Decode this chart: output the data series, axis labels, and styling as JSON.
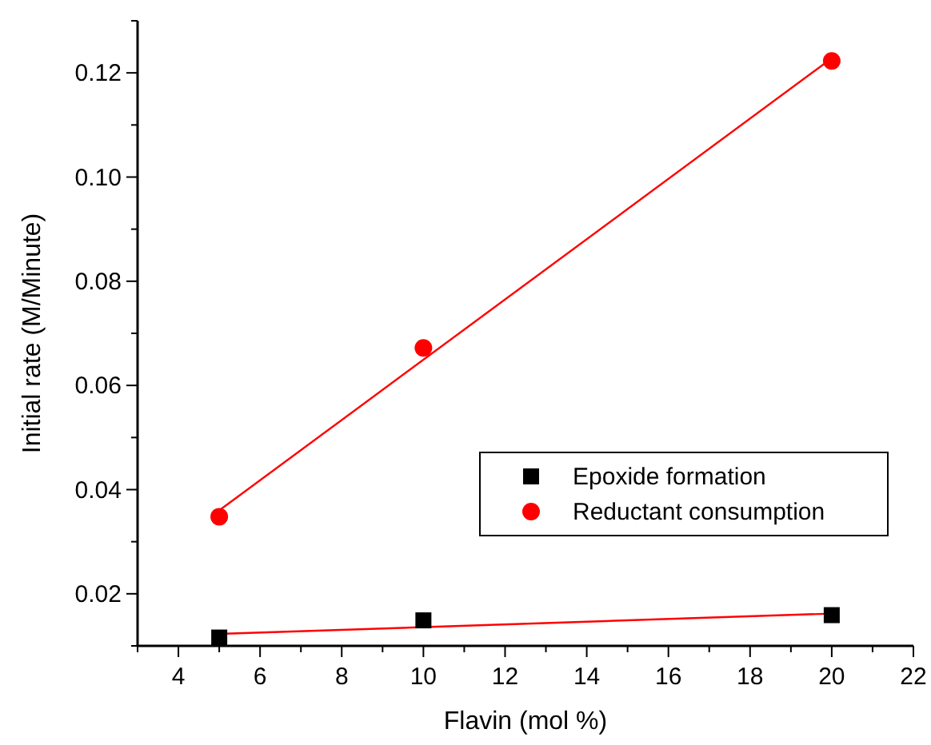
{
  "chart_data": {
    "type": "scatter",
    "xlabel": "Flavin (mol %)",
    "ylabel": "Initial rate (M/Minute)",
    "xlim": [
      3,
      22
    ],
    "xticks": [
      {
        "value": 3,
        "label": null
      },
      4,
      {
        "value": 5,
        "label": null
      },
      6,
      {
        "value": 7,
        "label": null
      },
      8,
      {
        "value": 9,
        "label": null
      },
      10,
      {
        "value": 11,
        "label": null
      },
      12,
      {
        "value": 13,
        "label": null
      },
      14,
      {
        "value": 15,
        "label": null
      },
      16,
      {
        "value": 17,
        "label": null
      },
      18,
      {
        "value": 19,
        "label": null
      },
      20,
      {
        "value": 21,
        "label": null
      },
      22
    ],
    "ylim": [
      0.01,
      0.13
    ],
    "yticks": [
      {
        "value": 0.01,
        "label": null
      },
      0.02,
      {
        "value": 0.03,
        "label": null
      },
      0.04,
      {
        "value": 0.05,
        "label": null
      },
      0.06,
      {
        "value": 0.07,
        "label": null
      },
      0.08,
      {
        "value": 0.09,
        "label": null
      },
      {
        "value": 0.1,
        "label": "0.10"
      },
      {
        "value": 0.11,
        "label": null
      },
      0.12,
      {
        "value": 0.13,
        "label": null
      }
    ],
    "legend": "right",
    "grid": false,
    "series": [
      {
        "name": "Epoxide formation",
        "color": "#000000",
        "marker": "square",
        "x": [
          5,
          10,
          20
        ],
        "values": [
          0.0116,
          0.0149,
          0.0159
        ]
      },
      {
        "name": "Reductant consumption",
        "color": "#ff0000",
        "marker": "circle",
        "x": [
          5,
          10,
          20
        ],
        "values": [
          0.0348,
          0.0672,
          0.1223
        ]
      },
      {
        "type": "line",
        "color": "#ff0000",
        "marker": "none",
        "x": [
          5,
          20
        ],
        "values": [
          0.0123,
          0.0162
        ]
      },
      {
        "type": "line",
        "color": "#ff0000",
        "marker": "none",
        "x": [
          5,
          20
        ],
        "values": [
          0.036,
          0.1228
        ]
      }
    ]
  }
}
